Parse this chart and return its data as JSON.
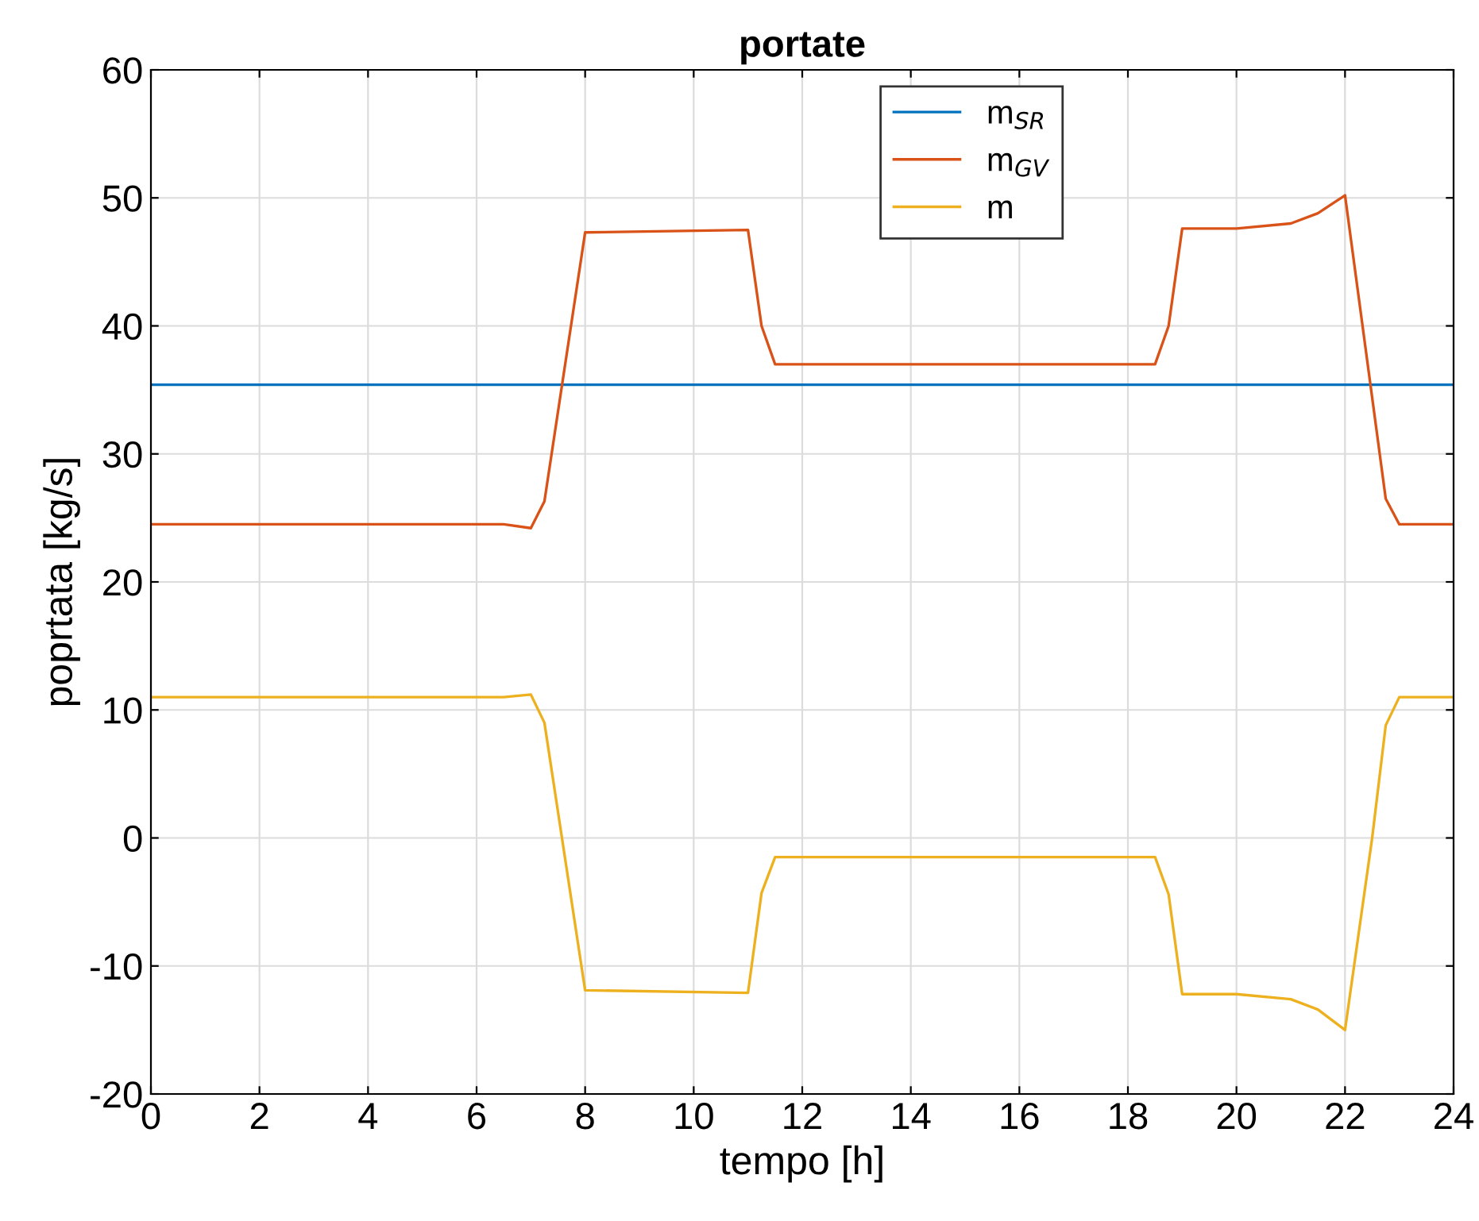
{
  "chart_data": {
    "type": "line",
    "title": "portate",
    "xlabel": "tempo [h]",
    "ylabel": "poprtata [kg/s]",
    "xlim": [
      0,
      24
    ],
    "xticks": [
      0,
      2,
      4,
      6,
      8,
      10,
      12,
      14,
      16,
      18,
      20,
      22,
      24
    ],
    "ylim": [
      -20,
      60
    ],
    "yticks": [
      -20,
      -10,
      0,
      10,
      20,
      30,
      40,
      50,
      60
    ],
    "grid": true,
    "legend": "top",
    "line_style": "solid",
    "marker": "none",
    "series": [
      {
        "name": "m$_{SR}$",
        "color": "#0072bd",
        "x": [
          0,
          24
        ],
        "values": [
          35.4,
          35.4
        ]
      },
      {
        "name": "m$_{GV}$",
        "color": "#d95319",
        "x": [
          0,
          6.5,
          7,
          7.25,
          8,
          11,
          11.25,
          11.5,
          18.5,
          18.75,
          19,
          20,
          21,
          21.5,
          22,
          22.75,
          23,
          24
        ],
        "values": [
          24.5,
          24.5,
          24.2,
          26.3,
          47.3,
          47.5,
          40,
          37,
          37,
          40,
          47.6,
          47.6,
          48,
          48.8,
          50.2,
          26.5,
          24.5,
          24.5
        ]
      },
      {
        "name": "m",
        "color": "#edb120",
        "x": [
          0,
          6.5,
          7,
          7.25,
          8,
          11,
          11.25,
          11.5,
          18.5,
          18.75,
          19,
          20,
          21,
          21.5,
          22,
          22.5,
          22.75,
          23,
          24
        ],
        "values": [
          11,
          11,
          11.2,
          9,
          -11.9,
          -12.1,
          -4.3,
          -1.5,
          -1.5,
          -4.4,
          -12.2,
          -12.2,
          -12.6,
          -13.4,
          -15,
          0,
          8.8,
          11,
          11
        ]
      }
    ]
  }
}
